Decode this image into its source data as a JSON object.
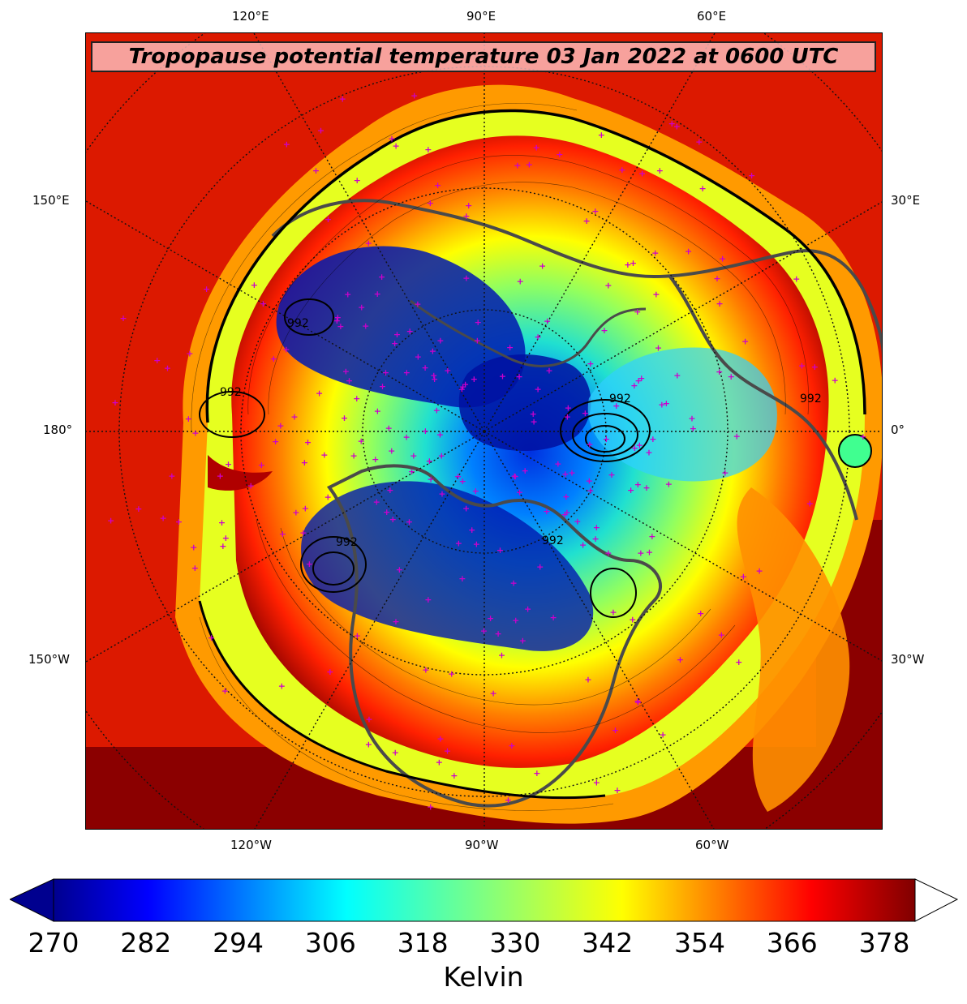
{
  "map": {
    "title": "Tropopause potential temperature 03 Jan 2022 at 0600 UTC",
    "projection": "north-polar-stereographic",
    "contour_labels": [
      "992",
      "992",
      "992",
      "992",
      "992",
      "992"
    ],
    "lon_labels_top": [
      "120°E",
      "90°E",
      "60°E"
    ],
    "lon_labels_bottom": [
      "120°W",
      "90°W",
      "60°W"
    ],
    "lon_labels_left": [
      "150°E",
      "180°",
      "150°W"
    ],
    "lon_labels_right": [
      "30°E",
      "0°",
      "30°W"
    ],
    "colors": {
      "warm": "#8b0000",
      "cold": "#0022cc",
      "station_marker": "#cc00cc",
      "coastline": "#4a4a4a"
    }
  },
  "colorbar": {
    "ticks": [
      "270",
      "282",
      "294",
      "306",
      "318",
      "330",
      "342",
      "354",
      "366",
      "378"
    ],
    "min": 270,
    "max": 382,
    "extend": "both",
    "units": "Kelvin",
    "colormap": "jet"
  }
}
